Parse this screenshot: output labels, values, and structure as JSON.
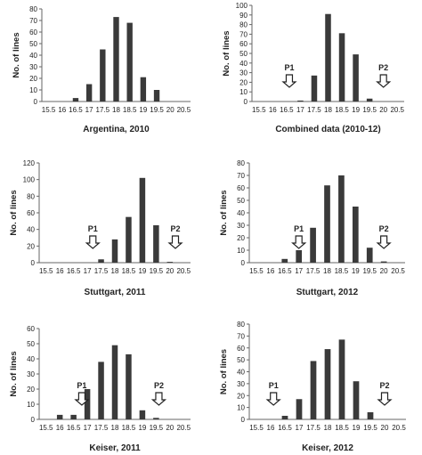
{
  "figure": {
    "x_ticks": [
      "15.5",
      "16",
      "16.5",
      "17",
      "17.5",
      "18",
      "18.5",
      "19",
      "19.5",
      "20",
      "20.5"
    ],
    "colors": {
      "bar": "#3a3a3a",
      "axis": "#666666",
      "arrow_stroke": "#222222",
      "arrow_fill": "#ffffff"
    }
  },
  "chart_data": [
    {
      "type": "bar",
      "title": "Argentina, 2010",
      "ylabel": "No. of lines",
      "xlabel": "",
      "categories": [
        "15.5",
        "16",
        "16.5",
        "17",
        "17.5",
        "18",
        "18.5",
        "19",
        "19.5",
        "20",
        "20.5"
      ],
      "values": [
        0,
        0,
        3,
        15,
        45,
        73,
        68,
        21,
        10,
        0,
        0
      ],
      "ylim": [
        0,
        80
      ],
      "yticks": [
        0,
        10,
        20,
        30,
        40,
        50,
        60,
        70,
        80
      ],
      "grid": false,
      "markers": []
    },
    {
      "type": "bar",
      "title": "Combined data (2010-12)",
      "ylabel": "No. of lines",
      "xlabel": "",
      "categories": [
        "15.5",
        "16",
        "16.5",
        "17",
        "17.5",
        "18",
        "18.5",
        "19",
        "19.5",
        "20",
        "20.5"
      ],
      "values": [
        0,
        0,
        0,
        1,
        27,
        91,
        71,
        49,
        3,
        0,
        0
      ],
      "ylim": [
        0,
        100
      ],
      "yticks": [
        0,
        10,
        20,
        30,
        40,
        50,
        60,
        70,
        80,
        90,
        100
      ],
      "grid": false,
      "markers": [
        {
          "label": "P1",
          "x": 16.6
        },
        {
          "label": "P2",
          "x": 20.0
        }
      ]
    },
    {
      "type": "bar",
      "title": "Stuttgart, 2011",
      "ylabel": "No. of lines",
      "xlabel": "",
      "categories": [
        "15.5",
        "16",
        "16.5",
        "17",
        "17.5",
        "18",
        "18.5",
        "19",
        "19.5",
        "20",
        "20.5"
      ],
      "values": [
        0,
        0,
        0,
        0,
        4,
        28,
        55,
        102,
        45,
        1,
        0
      ],
      "ylim": [
        0,
        120
      ],
      "yticks": [
        0,
        20,
        40,
        60,
        80,
        100,
        120
      ],
      "grid": false,
      "markers": [
        {
          "label": "P1",
          "x": 17.2
        },
        {
          "label": "P2",
          "x": 20.2
        }
      ]
    },
    {
      "type": "bar",
      "title": "Stuttgart, 2012",
      "ylabel": "No. of lines",
      "xlabel": "",
      "categories": [
        "15.5",
        "16",
        "16.5",
        "17",
        "17.5",
        "18",
        "18.5",
        "19",
        "19.5",
        "20",
        "20.5"
      ],
      "values": [
        0,
        0,
        3,
        10,
        28,
        62,
        70,
        45,
        12,
        1,
        0
      ],
      "ylim": [
        0,
        80
      ],
      "yticks": [
        0,
        10,
        20,
        30,
        40,
        50,
        60,
        70,
        80
      ],
      "grid": false,
      "markers": [
        {
          "label": "P1",
          "x": 17.0
        },
        {
          "label": "P2",
          "x": 20.0
        }
      ]
    },
    {
      "type": "bar",
      "title": "Keiser, 2011",
      "ylabel": "No. of lines",
      "xlabel": "",
      "categories": [
        "15.5",
        "16",
        "16.5",
        "17",
        "17.5",
        "18",
        "18.5",
        "19",
        "19.5",
        "20",
        "20.5"
      ],
      "values": [
        0,
        3,
        3,
        20,
        38,
        49,
        43,
        6,
        1,
        0,
        0
      ],
      "ylim": [
        0,
        60
      ],
      "yticks": [
        0,
        10,
        20,
        30,
        40,
        50,
        60
      ],
      "grid": false,
      "markers": [
        {
          "label": "P1",
          "x": 16.8
        },
        {
          "label": "P2",
          "x": 19.6
        }
      ]
    },
    {
      "type": "bar",
      "title": "Keiser, 2012",
      "ylabel": "No. of lines",
      "xlabel": "",
      "categories": [
        "15.5",
        "16",
        "16.5",
        "17",
        "17.5",
        "18",
        "18.5",
        "19",
        "19.5",
        "20",
        "20.5"
      ],
      "values": [
        0,
        0,
        3,
        17,
        49,
        59,
        67,
        32,
        6,
        0,
        0
      ],
      "ylim": [
        0,
        80
      ],
      "yticks": [
        0,
        10,
        20,
        30,
        40,
        50,
        60,
        70,
        80
      ],
      "grid": false,
      "markers": [
        {
          "label": "P1",
          "x": 16.1
        },
        {
          "label": "P2",
          "x": 20.0
        }
      ]
    }
  ]
}
